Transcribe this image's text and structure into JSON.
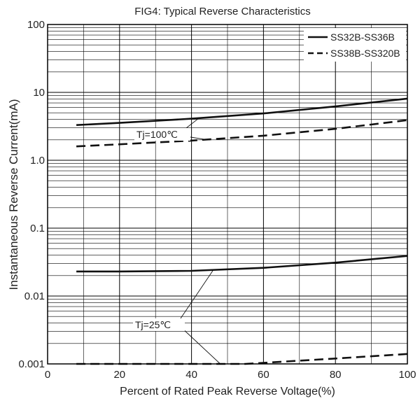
{
  "chart_data": {
    "type": "line",
    "title": "FIG4:  Typical Reverse Characteristics",
    "xlabel": "Percent of Rated Peak Reverse Voltage(%)",
    "ylabel": "Instantaneous Reverse Current(mA)",
    "xlim": [
      0,
      100
    ],
    "ylim": [
      0.001,
      100
    ],
    "yscale": "log",
    "grid": true,
    "legend_position": "top-right",
    "x_tick_labels": [
      "0",
      "20",
      "40",
      "60",
      "80",
      "100"
    ],
    "y_tick_labels": [
      "0.001",
      "0.01",
      "0.1",
      "1.0",
      "10",
      "100"
    ],
    "series": [
      {
        "name": "SS32B-SS36B",
        "style": "solid",
        "curves": [
          {
            "label": "Tj=100℃",
            "points": [
              [
                8,
                3.3
              ],
              [
                20,
                3.55
              ],
              [
                40,
                4.1
              ],
              [
                60,
                4.9
              ],
              [
                80,
                6.2
              ],
              [
                100,
                8.1
              ]
            ]
          },
          {
            "label": "Tj=25℃",
            "points": [
              [
                8,
                0.023
              ],
              [
                20,
                0.023
              ],
              [
                40,
                0.0235
              ],
              [
                60,
                0.026
              ],
              [
                80,
                0.031
              ],
              [
                100,
                0.039
              ]
            ]
          }
        ]
      },
      {
        "name": "SS38B-SS320B",
        "style": "dashed",
        "curves": [
          {
            "label": "Tj=100℃",
            "points": [
              [
                8,
                1.6
              ],
              [
                20,
                1.72
              ],
              [
                40,
                1.95
              ],
              [
                60,
                2.3
              ],
              [
                80,
                2.9
              ],
              [
                100,
                3.9
              ]
            ]
          },
          {
            "label": "Tj=25℃",
            "points": [
              [
                8,
                0.001
              ],
              [
                20,
                0.001
              ],
              [
                40,
                0.001
              ],
              [
                55,
                0.001
              ],
              [
                80,
                0.0012
              ],
              [
                100,
                0.0014
              ]
            ]
          }
        ]
      }
    ],
    "annotations": [
      {
        "text": "Tj=100℃",
        "points_to": [
          [
            42,
            4.15
          ],
          [
            45,
            1.98
          ]
        ]
      },
      {
        "text": "Tj=25℃",
        "points_to": [
          [
            46,
            0.024
          ],
          [
            48,
            0.001
          ]
        ]
      }
    ]
  }
}
